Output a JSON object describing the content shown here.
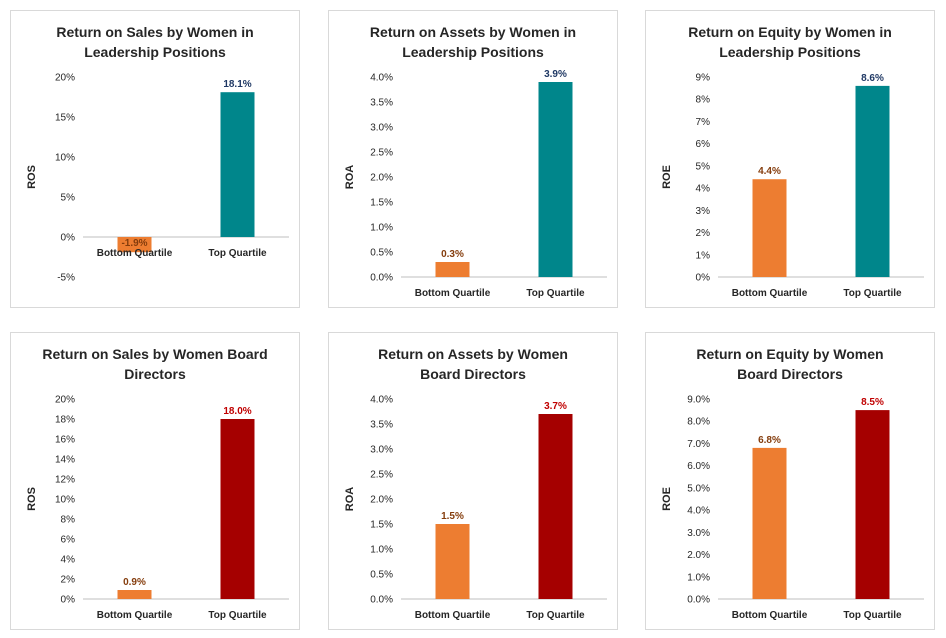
{
  "chart_data": [
    {
      "type": "bar",
      "title_lines": [
        "Return on Sales by Women in",
        "Leadership Positions"
      ],
      "ylabel": "ROS",
      "categories": [
        "Bottom Quartile",
        "Top Quartile"
      ],
      "values": [
        -1.9,
        18.1
      ],
      "value_labels": [
        "-1.9%",
        "18.1%"
      ],
      "ylim": [
        -5,
        20
      ],
      "yticks": [
        -5,
        0,
        5,
        10,
        15,
        20
      ],
      "ytick_labels": [
        "-5%",
        "0%",
        "5%",
        "10%",
        "15%",
        "20%"
      ],
      "bar_colors": [
        "#ed7d31",
        "#00868b"
      ],
      "label_colors": [
        "#843c0c",
        "#1f3864"
      ]
    },
    {
      "type": "bar",
      "title_lines": [
        "Return on Assets by Women in",
        "Leadership Positions"
      ],
      "ylabel": "ROA",
      "categories": [
        "Bottom Quartile",
        "Top Quartile"
      ],
      "values": [
        0.3,
        3.9
      ],
      "value_labels": [
        "0.3%",
        "3.9%"
      ],
      "ylim": [
        0,
        4
      ],
      "yticks": [
        0,
        0.5,
        1,
        1.5,
        2,
        2.5,
        3,
        3.5,
        4
      ],
      "ytick_labels": [
        "0.0%",
        "0.5%",
        "1.0%",
        "1.5%",
        "2.0%",
        "2.5%",
        "3.0%",
        "3.5%",
        "4.0%"
      ],
      "bar_colors": [
        "#ed7d31",
        "#00868b"
      ],
      "label_colors": [
        "#843c0c",
        "#1f3864"
      ]
    },
    {
      "type": "bar",
      "title_lines": [
        "Return on Equity by Women in",
        "Leadership Positions"
      ],
      "ylabel": "ROE",
      "categories": [
        "Bottom Quartile",
        "Top Quartile"
      ],
      "values": [
        4.4,
        8.6
      ],
      "value_labels": [
        "4.4%",
        "8.6%"
      ],
      "ylim": [
        0,
        9
      ],
      "yticks": [
        0,
        1,
        2,
        3,
        4,
        5,
        6,
        7,
        8,
        9
      ],
      "ytick_labels": [
        "0%",
        "1%",
        "2%",
        "3%",
        "4%",
        "5%",
        "6%",
        "7%",
        "8%",
        "9%"
      ],
      "bar_colors": [
        "#ed7d31",
        "#00868b"
      ],
      "label_colors": [
        "#843c0c",
        "#1f3864"
      ]
    },
    {
      "type": "bar",
      "title_lines": [
        "Return on Sales by Women Board",
        "Directors"
      ],
      "ylabel": "ROS",
      "categories": [
        "Bottom Quartile",
        "Top Quartile"
      ],
      "values": [
        0.9,
        18.0
      ],
      "value_labels": [
        "0.9%",
        "18.0%"
      ],
      "ylim": [
        0,
        20
      ],
      "yticks": [
        0,
        2,
        4,
        6,
        8,
        10,
        12,
        14,
        16,
        18,
        20
      ],
      "ytick_labels": [
        "0%",
        "2%",
        "4%",
        "6%",
        "8%",
        "10%",
        "12%",
        "14%",
        "16%",
        "18%",
        "20%"
      ],
      "bar_colors": [
        "#ed7d31",
        "#a50000"
      ],
      "label_colors": [
        "#843c0c",
        "#c00000"
      ]
    },
    {
      "type": "bar",
      "title_lines": [
        "Return on Assets by Women",
        "Board Directors"
      ],
      "ylabel": "ROA",
      "categories": [
        "Bottom Quartile",
        "Top Quartile"
      ],
      "values": [
        1.5,
        3.7
      ],
      "value_labels": [
        "1.5%",
        "3.7%"
      ],
      "ylim": [
        0,
        4
      ],
      "yticks": [
        0,
        0.5,
        1,
        1.5,
        2,
        2.5,
        3,
        3.5,
        4
      ],
      "ytick_labels": [
        "0.0%",
        "0.5%",
        "1.0%",
        "1.5%",
        "2.0%",
        "2.5%",
        "3.0%",
        "3.5%",
        "4.0%"
      ],
      "bar_colors": [
        "#ed7d31",
        "#a50000"
      ],
      "label_colors": [
        "#843c0c",
        "#c00000"
      ]
    },
    {
      "type": "bar",
      "title_lines": [
        "Return on Equity by Women",
        "Board Directors"
      ],
      "ylabel": "ROE",
      "categories": [
        "Bottom Quartile",
        "Top Quartile"
      ],
      "values": [
        6.8,
        8.5
      ],
      "value_labels": [
        "6.8%",
        "8.5%"
      ],
      "ylim": [
        0,
        9
      ],
      "yticks": [
        0,
        1,
        2,
        3,
        4,
        5,
        6,
        7,
        8,
        9
      ],
      "ytick_labels": [
        "0.0%",
        "1.0%",
        "2.0%",
        "3.0%",
        "4.0%",
        "5.0%",
        "6.0%",
        "7.0%",
        "8.0%",
        "9.0%"
      ],
      "bar_colors": [
        "#ed7d31",
        "#a50000"
      ],
      "label_colors": [
        "#843c0c",
        "#c00000"
      ]
    }
  ]
}
